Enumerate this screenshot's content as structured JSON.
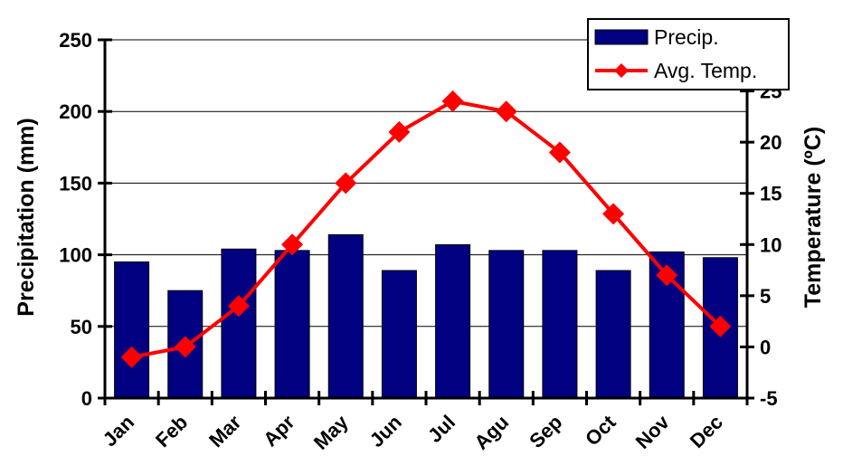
{
  "chart_data": {
    "type": "bar",
    "categories": [
      "Jan",
      "Feb",
      "Mar",
      "Apr",
      "May",
      "Jun",
      "Jul",
      "Agu",
      "Sep",
      "Oct",
      "Nov",
      "Dec"
    ],
    "series": [
      {
        "name": "Precip.",
        "type": "bar",
        "axis": "left",
        "color": "#000080",
        "values": [
          95,
          75,
          104,
          103,
          114,
          89,
          107,
          103,
          103,
          89,
          102,
          98
        ]
      },
      {
        "name": "Avg. Temp.",
        "type": "line",
        "axis": "right",
        "color": "#ff0000",
        "marker": "diamond",
        "values": [
          -1,
          0,
          4,
          10,
          16,
          21,
          24,
          23,
          19,
          13,
          7,
          2
        ]
      }
    ],
    "ylabel": "Precipitation (mm)",
    "ylim": [
      0,
      250
    ],
    "yticks": [
      0,
      50,
      100,
      150,
      200,
      250
    ],
    "y2label": "Temperature (ºC)",
    "y2lim": [
      -5,
      30
    ],
    "y2ticks": [
      -5,
      0,
      5,
      10,
      15,
      20,
      25
    ],
    "grid": true,
    "legend": "top-right"
  }
}
